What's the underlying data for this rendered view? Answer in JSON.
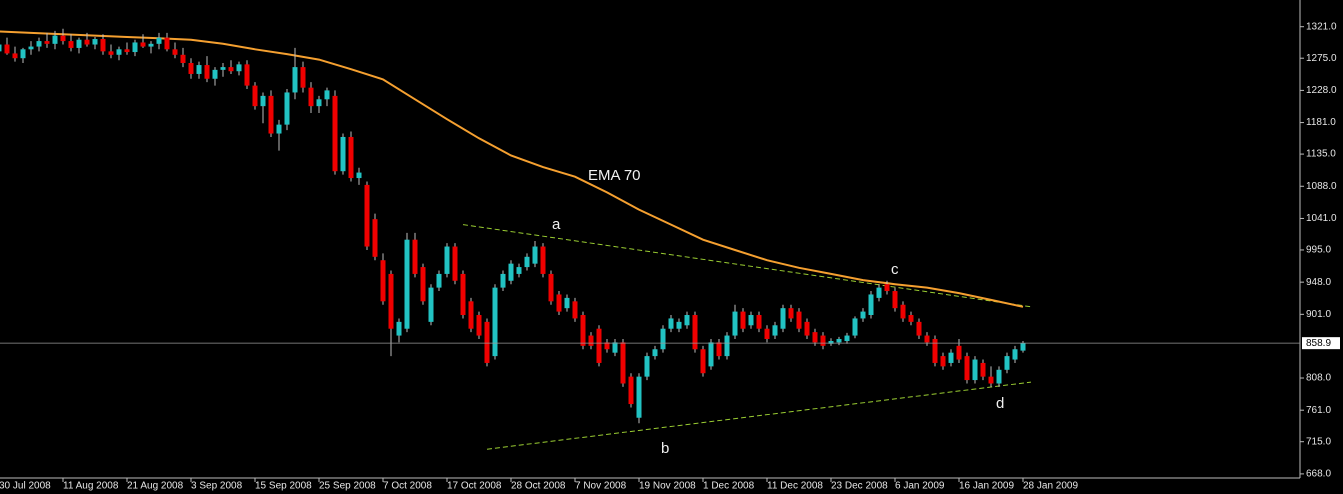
{
  "chart_data": {
    "type": "candlestick",
    "categories": [
      "30 Jul 2008",
      null,
      null,
      null,
      null,
      null,
      null,
      null,
      "11 Aug 2008",
      null,
      null,
      null,
      null,
      null,
      null,
      null,
      "21 Aug 2008",
      null,
      null,
      null,
      null,
      null,
      null,
      null,
      "3 Sep 2008",
      null,
      null,
      null,
      null,
      null,
      null,
      null,
      "15 Sep 2008",
      null,
      null,
      null,
      null,
      null,
      null,
      null,
      "25 Sep 2008",
      null,
      null,
      null,
      null,
      null,
      null,
      null,
      "7 Oct 2008",
      null,
      null,
      null,
      null,
      null,
      null,
      null,
      "17 Oct 2008",
      null,
      null,
      null,
      null,
      null,
      null,
      null,
      "28 Oct 2008",
      null,
      null,
      null,
      null,
      null,
      null,
      null,
      "7 Nov 2008",
      null,
      null,
      null,
      null,
      null,
      null,
      null,
      "19 Nov 2008",
      null,
      null,
      null,
      null,
      null,
      null,
      null,
      "1 Dec 2008",
      null,
      null,
      null,
      null,
      null,
      null,
      null,
      "11 Dec 2008",
      null,
      null,
      null,
      null,
      null,
      null,
      null,
      "23 Dec 2008",
      null,
      null,
      null,
      null,
      null,
      null,
      null,
      "6 Jan 2009",
      null,
      null,
      null,
      null,
      null,
      null,
      null,
      "16 Jan 2009",
      null,
      null,
      null,
      null,
      null,
      null,
      null,
      "28 Jan 2009"
    ],
    "open": [
      1285,
      1295,
      1282,
      1275,
      1288,
      1292,
      1300,
      1296,
      1308,
      1300,
      1290,
      1302,
      1295,
      1303,
      1285,
      1280,
      1288,
      1284,
      1298,
      1292,
      1296,
      1305,
      1288,
      1280,
      1268,
      1252,
      1265,
      1245,
      1258,
      1262,
      1256,
      1266,
      1235,
      1205,
      1220,
      1165,
      1178,
      1225,
      1262,
      1232,
      1205,
      1215,
      1220,
      1110,
      1160,
      1100,
      1090,
      1040,
      980,
      960,
      870,
      880,
      1010,
      970,
      890,
      940,
      960,
      1000,
      960,
      920,
      900,
      890,
      840,
      940,
      950,
      960,
      970,
      975,
      1000,
      960,
      930,
      910,
      920,
      900,
      870,
      880,
      860,
      845,
      860,
      810,
      750,
      810,
      840,
      850,
      880,
      880,
      885,
      900,
      850,
      825,
      860,
      840,
      870,
      905,
      885,
      900,
      880,
      870,
      880,
      910,
      905,
      890,
      875,
      870,
      858,
      860,
      862,
      870,
      895,
      900,
      925,
      945,
      935,
      915,
      900,
      890,
      870,
      865,
      840,
      830,
      855,
      840,
      805,
      830,
      810,
      800,
      820,
      835,
      848
    ],
    "high": [
      1300,
      1305,
      1292,
      1290,
      1300,
      1305,
      1312,
      1315,
      1318,
      1310,
      1305,
      1312,
      1306,
      1310,
      1295,
      1292,
      1298,
      1302,
      1310,
      1300,
      1312,
      1312,
      1298,
      1290,
      1275,
      1270,
      1278,
      1262,
      1268,
      1272,
      1270,
      1272,
      1240,
      1225,
      1228,
      1185,
      1230,
      1290,
      1270,
      1240,
      1220,
      1232,
      1228,
      1165,
      1168,
      1115,
      1095,
      1048,
      990,
      965,
      895,
      1020,
      1020,
      975,
      945,
      965,
      1005,
      1005,
      965,
      925,
      905,
      895,
      945,
      965,
      980,
      975,
      990,
      1008,
      1005,
      965,
      935,
      930,
      925,
      905,
      875,
      885,
      865,
      865,
      865,
      815,
      815,
      845,
      855,
      885,
      900,
      895,
      905,
      905,
      855,
      865,
      865,
      875,
      915,
      910,
      905,
      905,
      885,
      890,
      915,
      915,
      910,
      895,
      880,
      875,
      866,
      868,
      874,
      898,
      910,
      935,
      945,
      950,
      940,
      920,
      905,
      895,
      875,
      870,
      845,
      850,
      865,
      845,
      840,
      835,
      825,
      825,
      845,
      855,
      862
    ],
    "low": [
      1270,
      1280,
      1270,
      1268,
      1280,
      1285,
      1290,
      1288,
      1295,
      1285,
      1282,
      1292,
      1288,
      1280,
      1275,
      1272,
      1280,
      1278,
      1290,
      1282,
      1288,
      1285,
      1275,
      1262,
      1245,
      1245,
      1240,
      1235,
      1248,
      1252,
      1250,
      1230,
      1200,
      1180,
      1160,
      1140,
      1170,
      1215,
      1225,
      1195,
      1195,
      1205,
      1105,
      1105,
      1095,
      1090,
      995,
      980,
      915,
      840,
      860,
      875,
      955,
      915,
      885,
      935,
      955,
      945,
      895,
      875,
      865,
      825,
      835,
      935,
      945,
      955,
      965,
      970,
      955,
      915,
      900,
      905,
      890,
      850,
      850,
      825,
      845,
      840,
      795,
      765,
      742,
      805,
      835,
      845,
      875,
      875,
      880,
      845,
      810,
      820,
      835,
      835,
      865,
      875,
      880,
      875,
      860,
      865,
      875,
      890,
      875,
      865,
      855,
      850,
      855,
      856,
      858,
      866,
      890,
      895,
      920,
      930,
      905,
      890,
      885,
      865,
      855,
      825,
      820,
      825,
      830,
      800,
      800,
      805,
      795,
      795,
      815,
      830,
      845
    ],
    "close": [
      1295,
      1282,
      1275,
      1288,
      1292,
      1300,
      1296,
      1308,
      1300,
      1290,
      1302,
      1295,
      1303,
      1285,
      1280,
      1288,
      1284,
      1298,
      1292,
      1296,
      1305,
      1288,
      1280,
      1268,
      1252,
      1265,
      1245,
      1258,
      1262,
      1256,
      1266,
      1235,
      1205,
      1220,
      1165,
      1178,
      1225,
      1262,
      1232,
      1205,
      1215,
      1228,
      1110,
      1160,
      1100,
      1108,
      1000,
      985,
      920,
      880,
      890,
      1010,
      960,
      920,
      940,
      960,
      1000,
      950,
      900,
      880,
      870,
      830,
      940,
      960,
      975,
      970,
      985,
      1000,
      960,
      920,
      905,
      925,
      895,
      855,
      855,
      830,
      850,
      860,
      800,
      770,
      810,
      840,
      850,
      880,
      895,
      890,
      900,
      850,
      815,
      860,
      840,
      870,
      905,
      880,
      900,
      880,
      865,
      885,
      910,
      895,
      880,
      870,
      860,
      855,
      862,
      865,
      870,
      895,
      905,
      930,
      940,
      935,
      910,
      895,
      890,
      870,
      860,
      830,
      825,
      845,
      835,
      805,
      835,
      810,
      800,
      820,
      840,
      850,
      858.9
    ],
    "up_color": "#22c3c3",
    "down_color": "#f00000",
    "wick_color": "#bdbdbd",
    "xlim": [
      0,
      162.5
    ],
    "ylim": [
      662,
      1360
    ],
    "yticks": [
      {
        "value": 1321,
        "label": "1321.0"
      },
      {
        "value": 1275,
        "label": "1275.0"
      },
      {
        "value": 1228,
        "label": "1228.0"
      },
      {
        "value": 1181,
        "label": "1181.0"
      },
      {
        "value": 1135,
        "label": "1135.0"
      },
      {
        "value": 1088,
        "label": "1088.0"
      },
      {
        "value": 1041,
        "label": "1041.0"
      },
      {
        "value": 995,
        "label": "995.0"
      },
      {
        "value": 948,
        "label": "948.0"
      },
      {
        "value": 901,
        "label": "901.0"
      },
      {
        "value": 808,
        "label": "808.0"
      },
      {
        "value": 761,
        "label": "761.0"
      },
      {
        "value": 715,
        "label": "715.0"
      },
      {
        "value": 668,
        "label": "668.0"
      }
    ],
    "ema": {
      "name": "EMA 70",
      "color": "#f5a030",
      "x": [
        0,
        4,
        8,
        12,
        16,
        20,
        24,
        28,
        32,
        36,
        40,
        44,
        48,
        52,
        56,
        60,
        64,
        68,
        72,
        76,
        80,
        84,
        88,
        92,
        96,
        100,
        104,
        108,
        112,
        116,
        120,
        124,
        128
      ],
      "values": [
        1314,
        1312,
        1310,
        1308,
        1306,
        1304,
        1302,
        1296,
        1288,
        1281,
        1273,
        1259,
        1244,
        1215,
        1186,
        1158,
        1133,
        1116,
        1102,
        1079,
        1054,
        1032,
        1010,
        995,
        980,
        969,
        960,
        951,
        945,
        940,
        932,
        922,
        912
      ]
    },
    "trendlines": [
      {
        "color": "#9acd32",
        "x": [
          58,
          129
        ],
        "y": [
          1032,
          912
        ]
      },
      {
        "color": "#9acd32",
        "x": [
          61,
          129
        ],
        "y": [
          704,
          802
        ]
      }
    ],
    "last_price": {
      "value": 858.9,
      "label": "858.9"
    },
    "annotations": [
      "a",
      "b",
      "c",
      "d"
    ]
  }
}
